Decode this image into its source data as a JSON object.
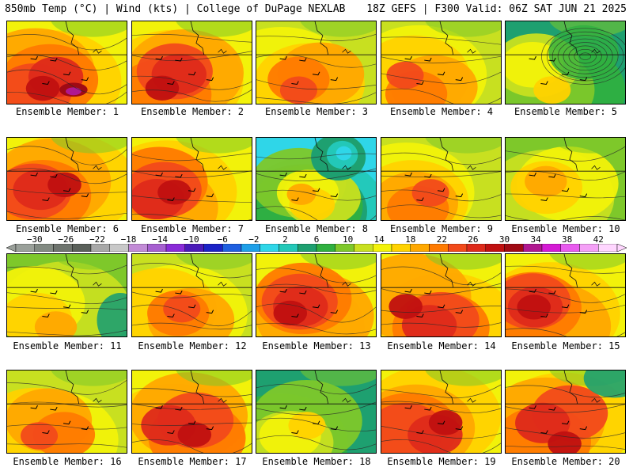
{
  "header": {
    "title_left": "850mb Temp (°C) | Wind (kts) | College of DuPage NEXLAB",
    "title_right": "18Z GEFS | F300 Valid: 06Z SAT JUN 21 2025"
  },
  "members": [
    {
      "label": "Ensemble Member: 1",
      "palette": "hot",
      "anomaly": "purple-core"
    },
    {
      "label": "Ensemble Member: 2",
      "palette": "hot",
      "anomaly": "none"
    },
    {
      "label": "Ensemble Member: 3",
      "palette": "warm",
      "anomaly": "none"
    },
    {
      "label": "Ensemble Member: 4",
      "palette": "warm",
      "anomaly": "none"
    },
    {
      "label": "Ensemble Member: 5",
      "palette": "cool",
      "anomaly": "low-north"
    },
    {
      "label": "Ensemble Member: 6",
      "palette": "hot",
      "anomaly": "none"
    },
    {
      "label": "Ensemble Member: 7",
      "palette": "hot",
      "anomaly": "none"
    },
    {
      "label": "Ensemble Member: 8",
      "palette": "cold",
      "anomaly": "cyan-trough"
    },
    {
      "label": "Ensemble Member: 9",
      "palette": "warm",
      "anomaly": "none"
    },
    {
      "label": "Ensemble Member: 10",
      "palette": "mild",
      "anomaly": "none"
    },
    {
      "label": "Ensemble Member: 11",
      "palette": "mild",
      "anomaly": "green-east"
    },
    {
      "label": "Ensemble Member: 12",
      "palette": "warm",
      "anomaly": "none"
    },
    {
      "label": "Ensemble Member: 13",
      "palette": "hot",
      "anomaly": "none"
    },
    {
      "label": "Ensemble Member: 14",
      "palette": "hot",
      "anomaly": "none"
    },
    {
      "label": "Ensemble Member: 15",
      "palette": "hot",
      "anomaly": "none"
    },
    {
      "label": "Ensemble Member: 16",
      "palette": "warm",
      "anomaly": "none"
    },
    {
      "label": "Ensemble Member: 17",
      "palette": "hot",
      "anomaly": "none"
    },
    {
      "label": "Ensemble Member: 18",
      "palette": "cool",
      "anomaly": "none"
    },
    {
      "label": "Ensemble Member: 19",
      "palette": "hot",
      "anomaly": "none"
    },
    {
      "label": "Ensemble Member: 20",
      "palette": "hot",
      "anomaly": "green-northeast"
    }
  ],
  "colorbar": {
    "ticks": [
      "−30",
      "−26",
      "−22",
      "−18",
      "−14",
      "−10",
      "−6",
      "−2",
      "2",
      "6",
      "10",
      "14",
      "18",
      "22",
      "26",
      "30",
      "34",
      "38",
      "42"
    ],
    "colors": [
      "#9aa09a",
      "#828a82",
      "#6e746e",
      "#5a605a",
      "#a8a8a8",
      "#c8c8c8",
      "#c28bd6",
      "#a65fd0",
      "#8a2bd8",
      "#4a1ab8",
      "#1b22c6",
      "#1f5fe0",
      "#1e9fe8",
      "#2fd6e8",
      "#23c8b8",
      "#1ea070",
      "#2fb040",
      "#7ec82a",
      "#c8e020",
      "#f2f20a",
      "#ffd200",
      "#ffa800",
      "#ff7a00",
      "#f24a1a",
      "#de2a1a",
      "#c01010",
      "#a00a14",
      "#b01890",
      "#d41ad4",
      "#e85aee",
      "#f4a0f6",
      "#ffd6ff"
    ]
  }
}
